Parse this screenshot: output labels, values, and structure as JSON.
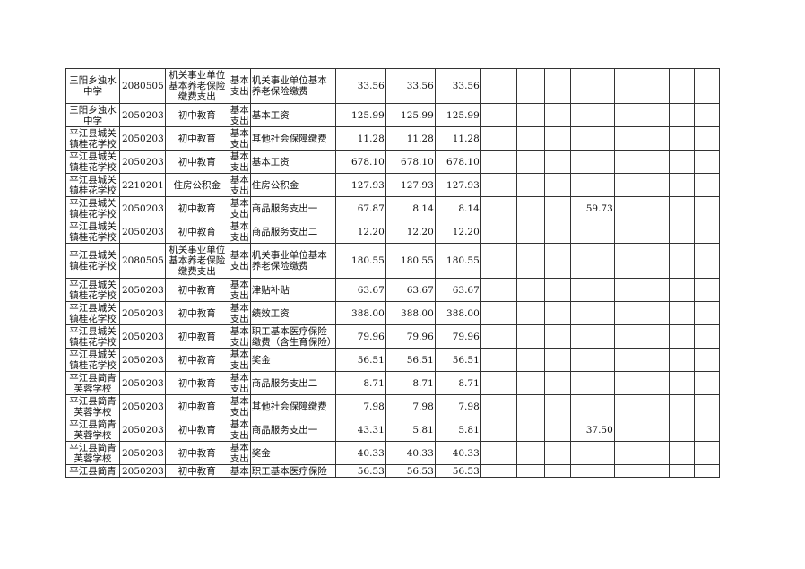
{
  "rows": [
    {
      "unit": "三阳乡浊水中学",
      "code": "2080505",
      "category": "机关事业单位基本养老保险缴费支出",
      "type": "基本支出",
      "item": "机关事业单位基本养老保险缴费",
      "a": "33.56",
      "b": "33.56",
      "c": "33.56",
      "extra": ""
    },
    {
      "unit": "三阳乡浊水中学",
      "code": "2050203",
      "category": "初中教育",
      "type": "基本支出",
      "item": "基本工资",
      "a": "125.99",
      "b": "125.99",
      "c": "125.99",
      "extra": ""
    },
    {
      "unit": "平江县城关镇桂花学校",
      "code": "2050203",
      "category": "初中教育",
      "type": "基本支出",
      "item": "其他社会保障缴费",
      "a": "11.28",
      "b": "11.28",
      "c": "11.28",
      "extra": ""
    },
    {
      "unit": "平江县城关镇桂花学校",
      "code": "2050203",
      "category": "初中教育",
      "type": "基本支出",
      "item": "基本工资",
      "a": "678.10",
      "b": "678.10",
      "c": "678.10",
      "extra": ""
    },
    {
      "unit": "平江县城关镇桂花学校",
      "code": "2210201",
      "category": "住房公积金",
      "type": "基本支出",
      "item": "住房公积金",
      "a": "127.93",
      "b": "127.93",
      "c": "127.93",
      "extra": ""
    },
    {
      "unit": "平江县城关镇桂花学校",
      "code": "2050203",
      "category": "初中教育",
      "type": "基本支出",
      "item": "商品服务支出一",
      "a": "67.87",
      "b": "8.14",
      "c": "8.14",
      "extra": "59.73"
    },
    {
      "unit": "平江县城关镇桂花学校",
      "code": "2050203",
      "category": "初中教育",
      "type": "基本支出",
      "item": "商品服务支出二",
      "a": "12.20",
      "b": "12.20",
      "c": "12.20",
      "extra": ""
    },
    {
      "unit": "平江县城关镇桂花学校",
      "code": "2080505",
      "category": "机关事业单位基本养老保险缴费支出",
      "type": "基本支出",
      "item": "机关事业单位基本养老保险缴费",
      "a": "180.55",
      "b": "180.55",
      "c": "180.55",
      "extra": ""
    },
    {
      "unit": "平江县城关镇桂花学校",
      "code": "2050203",
      "category": "初中教育",
      "type": "基本支出",
      "item": "津贴补贴",
      "a": "63.67",
      "b": "63.67",
      "c": "63.67",
      "extra": ""
    },
    {
      "unit": "平江县城关镇桂花学校",
      "code": "2050203",
      "category": "初中教育",
      "type": "基本支出",
      "item": "绩效工资",
      "a": "388.00",
      "b": "388.00",
      "c": "388.00",
      "extra": ""
    },
    {
      "unit": "平江县城关镇桂花学校",
      "code": "2050203",
      "category": "初中教育",
      "type": "基本支出",
      "item": "职工基本医疗保险缴费（含生育保险）",
      "a": "79.96",
      "b": "79.96",
      "c": "79.96",
      "extra": ""
    },
    {
      "unit": "平江县城关镇桂花学校",
      "code": "2050203",
      "category": "初中教育",
      "type": "基本支出",
      "item": "奖金",
      "a": "56.51",
      "b": "56.51",
      "c": "56.51",
      "extra": ""
    },
    {
      "unit": "平江县简青芙蓉学校",
      "code": "2050203",
      "category": "初中教育",
      "type": "基本支出",
      "item": "商品服务支出二",
      "a": "8.71",
      "b": "8.71",
      "c": "8.71",
      "extra": ""
    },
    {
      "unit": "平江县简青芙蓉学校",
      "code": "2050203",
      "category": "初中教育",
      "type": "基本支出",
      "item": "其他社会保障缴费",
      "a": "7.98",
      "b": "7.98",
      "c": "7.98",
      "extra": ""
    },
    {
      "unit": "平江县简青芙蓉学校",
      "code": "2050203",
      "category": "初中教育",
      "type": "基本支出",
      "item": "商品服务支出一",
      "a": "43.31",
      "b": "5.81",
      "c": "5.81",
      "extra": "37.50"
    },
    {
      "unit": "平江县简青芙蓉学校",
      "code": "2050203",
      "category": "初中教育",
      "type": "基本支出",
      "item": "奖金",
      "a": "40.33",
      "b": "40.33",
      "c": "40.33",
      "extra": ""
    },
    {
      "unit": "平江县简青",
      "code": "2050203",
      "category": "初中教育",
      "type": "基本",
      "item": "职工基本医疗保险",
      "a": "56.53",
      "b": "56.53",
      "c": "56.53",
      "extra": ""
    }
  ]
}
